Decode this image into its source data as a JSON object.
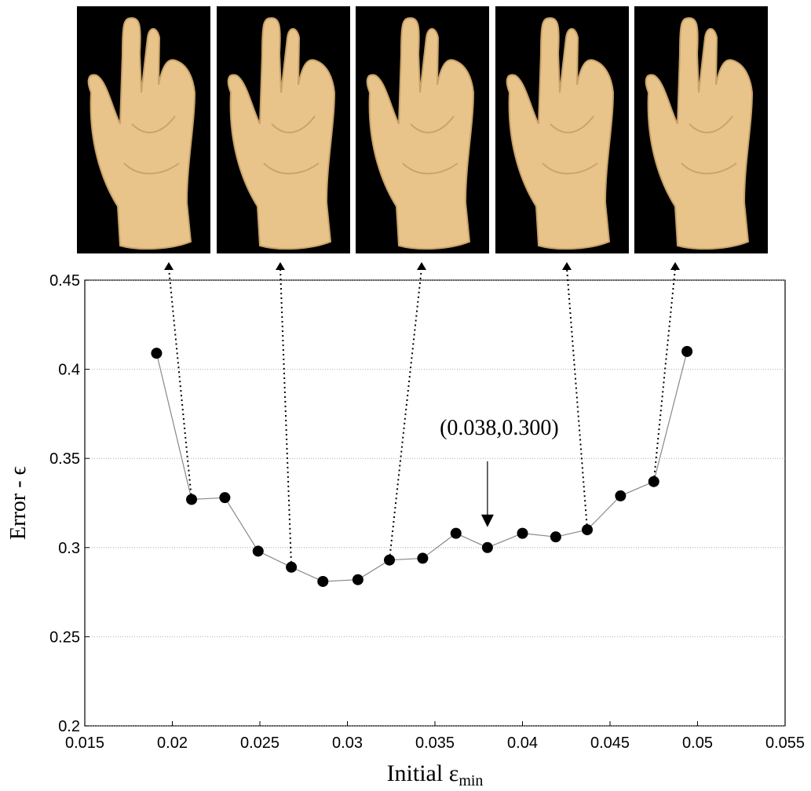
{
  "chart_data": {
    "type": "line",
    "xlabel": {
      "text": "Initial ε",
      "subscript": "min"
    },
    "ylabel": "Error - ϵ",
    "x": [
      0.0191,
      0.0211,
      0.023,
      0.0249,
      0.0268,
      0.0286,
      0.0306,
      0.0324,
      0.0343,
      0.0362,
      0.038,
      0.04,
      0.0419,
      0.0437,
      0.0456,
      0.0475,
      0.0494
    ],
    "series": [
      {
        "color": "#000000",
        "values": [
          0.409,
          0.327,
          0.328,
          0.298,
          0.289,
          0.281,
          0.282,
          0.293,
          0.294,
          0.308,
          0.3,
          0.308,
          0.306,
          0.31,
          0.329,
          0.337,
          0.41
        ]
      }
    ],
    "xlim": [
      0.015,
      0.055
    ],
    "xticks": [
      0.015,
      0.02,
      0.025,
      0.03,
      0.035,
      0.04,
      0.045,
      0.05,
      0.055
    ],
    "ylim": [
      0.2,
      0.45
    ],
    "yticks": [
      0.2,
      0.25,
      0.3,
      0.35,
      0.4,
      0.45
    ],
    "grid": true,
    "annotations": [
      {
        "text": "(0.038,0.300)",
        "x": 0.038,
        "y": 0.3
      }
    ]
  }
}
